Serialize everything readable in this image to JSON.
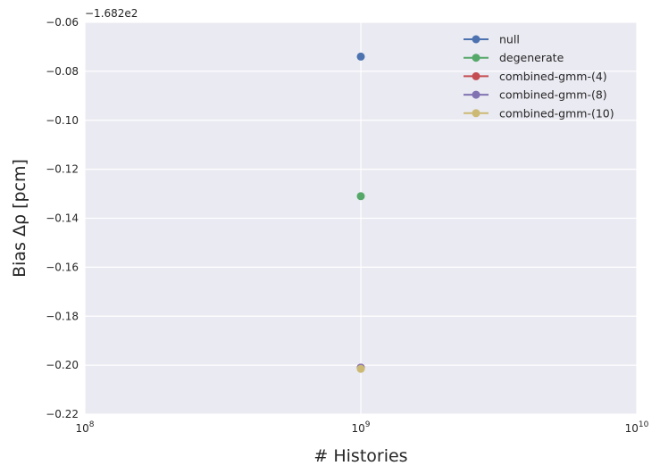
{
  "chart_data": {
    "type": "scatter",
    "xlabel": "# Histories",
    "ylabel": "Bias Δρ [pcm]",
    "x_scale": "log",
    "xlim": [
      100000000,
      10000000000
    ],
    "ylim": [
      -0.22,
      -0.06
    ],
    "y_offset_label": "−1.682e2",
    "x_ticks": [
      {
        "value": 100000000,
        "base": "10",
        "exp": "8"
      },
      {
        "value": 1000000000,
        "base": "10",
        "exp": "9"
      },
      {
        "value": 10000000000,
        "base": "10",
        "exp": "10"
      }
    ],
    "y_ticks": [
      {
        "value": -0.06,
        "label": "−0.06"
      },
      {
        "value": -0.08,
        "label": "−0.08"
      },
      {
        "value": -0.1,
        "label": "−0.10"
      },
      {
        "value": -0.12,
        "label": "−0.12"
      },
      {
        "value": -0.14,
        "label": "−0.14"
      },
      {
        "value": -0.16,
        "label": "−0.16"
      },
      {
        "value": -0.18,
        "label": "−0.18"
      },
      {
        "value": -0.2,
        "label": "−0.20"
      },
      {
        "value": -0.22,
        "label": "−0.22"
      }
    ],
    "grid": true,
    "legend_position": "top-right",
    "series": [
      {
        "name": "null",
        "color": "#4C72B0",
        "x": [
          1000000000
        ],
        "y": [
          -0.074
        ]
      },
      {
        "name": "degenerate",
        "color": "#55A868",
        "x": [
          1000000000
        ],
        "y": [
          -0.131
        ]
      },
      {
        "name": "combined-gmm-(4)",
        "color": "#C44E52",
        "x": [
          1000000000
        ],
        "y": [
          -0.201
        ]
      },
      {
        "name": "combined-gmm-(8)",
        "color": "#8172B2",
        "x": [
          1000000000
        ],
        "y": [
          -0.201
        ]
      },
      {
        "name": "combined-gmm-(10)",
        "color": "#CCB974",
        "x": [
          1000000000
        ],
        "y": [
          -0.2015
        ]
      }
    ]
  }
}
